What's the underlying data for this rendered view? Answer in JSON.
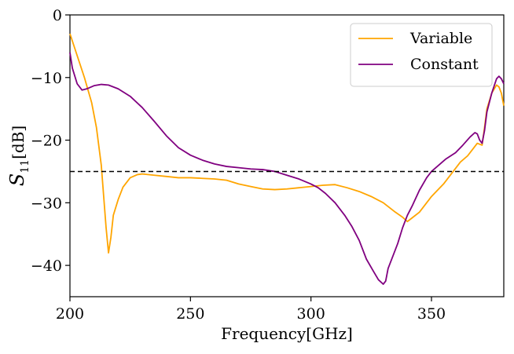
{
  "chart_data": {
    "type": "line",
    "xlabel": "Frequency[GHz]",
    "ylabel_main": "S",
    "ylabel_sub": "11",
    "ylabel_unit": "[dB]",
    "xlim": [
      200,
      380
    ],
    "ylim": [
      -45,
      0
    ],
    "xticks": [
      200,
      250,
      300,
      350
    ],
    "yticks": [
      0,
      -10,
      -20,
      -30,
      -40
    ],
    "xtick_labels": [
      "200",
      "250",
      "300",
      "350"
    ],
    "ytick_labels": [
      "0",
      "−10",
      "−20",
      "−30",
      "−40"
    ],
    "grid": false,
    "legend_position": "top-right",
    "reference_line": {
      "y": -25,
      "style": "dashed",
      "color": "#000000"
    },
    "series": [
      {
        "name": "Variable",
        "color": "#FFA500",
        "points": [
          [
            200,
            -3
          ],
          [
            203,
            -6.5
          ],
          [
            206,
            -10
          ],
          [
            209,
            -14
          ],
          [
            211,
            -18
          ],
          [
            213,
            -24
          ],
          [
            214,
            -29
          ],
          [
            215,
            -34
          ],
          [
            216,
            -38
          ],
          [
            217,
            -35.5
          ],
          [
            218,
            -32
          ],
          [
            220,
            -29.5
          ],
          [
            222,
            -27.5
          ],
          [
            225,
            -26
          ],
          [
            228,
            -25.5
          ],
          [
            230,
            -25.4
          ],
          [
            235,
            -25.6
          ],
          [
            240,
            -25.8
          ],
          [
            245,
            -26
          ],
          [
            250,
            -26
          ],
          [
            255,
            -26.1
          ],
          [
            260,
            -26.2
          ],
          [
            265,
            -26.4
          ],
          [
            270,
            -27
          ],
          [
            275,
            -27.4
          ],
          [
            280,
            -27.8
          ],
          [
            285,
            -27.9
          ],
          [
            290,
            -27.8
          ],
          [
            295,
            -27.6
          ],
          [
            300,
            -27.4
          ],
          [
            305,
            -27.2
          ],
          [
            310,
            -27.1
          ],
          [
            315,
            -27.6
          ],
          [
            320,
            -28.2
          ],
          [
            325,
            -29
          ],
          [
            330,
            -30
          ],
          [
            335,
            -31.5
          ],
          [
            338,
            -32.3
          ],
          [
            340,
            -33
          ],
          [
            342,
            -32.4
          ],
          [
            345,
            -31.5
          ],
          [
            348,
            -30
          ],
          [
            350,
            -29
          ],
          [
            353,
            -27.8
          ],
          [
            355,
            -27
          ],
          [
            358,
            -25.5
          ],
          [
            360,
            -24.5
          ],
          [
            362,
            -23.5
          ],
          [
            365,
            -22.5
          ],
          [
            367,
            -21.5
          ],
          [
            369,
            -20.5
          ],
          [
            371,
            -20.8
          ],
          [
            372,
            -18
          ],
          [
            373,
            -15
          ],
          [
            375,
            -12.5
          ],
          [
            377,
            -11.2
          ],
          [
            378,
            -11.5
          ],
          [
            379,
            -12.5
          ],
          [
            380,
            -14.5
          ]
        ]
      },
      {
        "name": "Constant",
        "color": "#800080",
        "points": [
          [
            200,
            -6
          ],
          [
            201,
            -8.5
          ],
          [
            203,
            -11
          ],
          [
            205,
            -12
          ],
          [
            207,
            -11.8
          ],
          [
            210,
            -11.3
          ],
          [
            213,
            -11.1
          ],
          [
            216,
            -11.2
          ],
          [
            220,
            -11.8
          ],
          [
            225,
            -13
          ],
          [
            230,
            -14.8
          ],
          [
            235,
            -17
          ],
          [
            240,
            -19.3
          ],
          [
            245,
            -21.2
          ],
          [
            250,
            -22.4
          ],
          [
            255,
            -23.2
          ],
          [
            260,
            -23.8
          ],
          [
            265,
            -24.2
          ],
          [
            270,
            -24.4
          ],
          [
            275,
            -24.6
          ],
          [
            280,
            -24.7
          ],
          [
            285,
            -25
          ],
          [
            290,
            -25.6
          ],
          [
            295,
            -26.2
          ],
          [
            300,
            -27
          ],
          [
            303,
            -27.6
          ],
          [
            306,
            -28.5
          ],
          [
            310,
            -30
          ],
          [
            314,
            -32
          ],
          [
            317,
            -33.8
          ],
          [
            320,
            -36
          ],
          [
            323,
            -39
          ],
          [
            326,
            -41
          ],
          [
            328,
            -42.3
          ],
          [
            330,
            -43
          ],
          [
            331,
            -42.5
          ],
          [
            332,
            -40.5
          ],
          [
            334,
            -38.5
          ],
          [
            336,
            -36.5
          ],
          [
            338,
            -34
          ],
          [
            340,
            -32
          ],
          [
            342,
            -30.5
          ],
          [
            345,
            -28
          ],
          [
            348,
            -26
          ],
          [
            350,
            -25
          ],
          [
            353,
            -24
          ],
          [
            356,
            -23
          ],
          [
            360,
            -22
          ],
          [
            363,
            -20.8
          ],
          [
            366,
            -19.5
          ],
          [
            368,
            -18.8
          ],
          [
            369,
            -19
          ],
          [
            370,
            -20
          ],
          [
            371,
            -20.5
          ],
          [
            372,
            -18.5
          ],
          [
            373,
            -15.5
          ],
          [
            375,
            -12.5
          ],
          [
            377,
            -10.2
          ],
          [
            378,
            -9.8
          ],
          [
            379,
            -10.2
          ],
          [
            380,
            -11
          ]
        ]
      }
    ]
  }
}
